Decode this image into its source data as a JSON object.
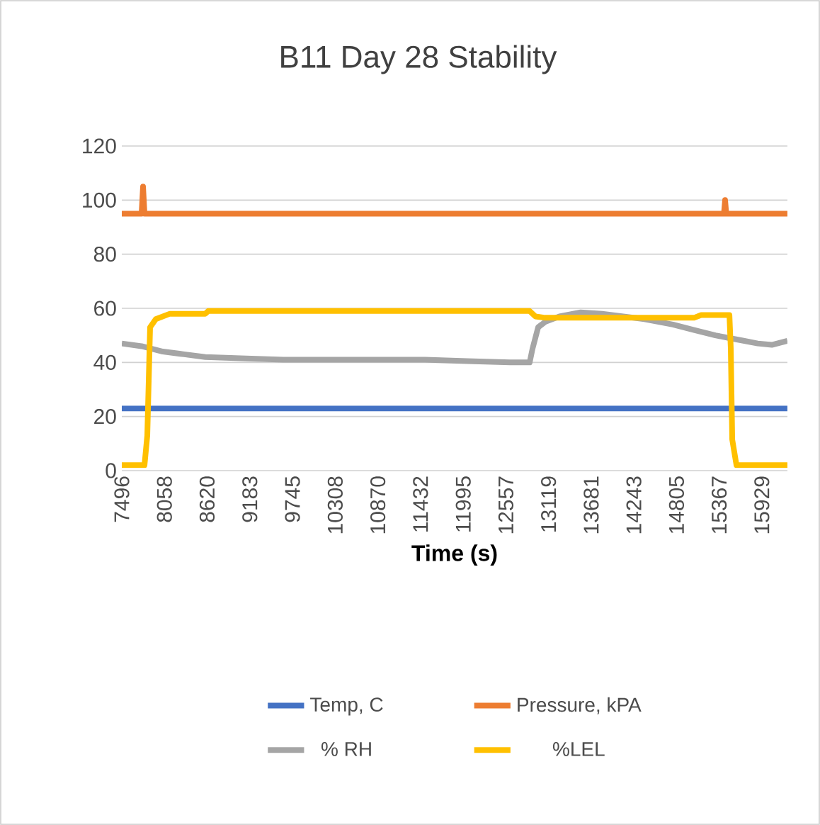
{
  "chart_data": {
    "type": "line",
    "title": "B11 Day 28 Stability",
    "xlabel": "Time (s)",
    "xlim": [
      7496,
      16266
    ],
    "xticks": [
      7496,
      8058,
      8620,
      9183,
      9745,
      10308,
      10870,
      11432,
      11995,
      12557,
      13119,
      13681,
      14243,
      14805,
      15367,
      15929
    ],
    "ylim": [
      0,
      120
    ],
    "yticks": [
      0,
      20,
      40,
      60,
      80,
      100,
      120
    ],
    "grid": "y",
    "legend": "bottom",
    "marker": "none",
    "line_style": "solid",
    "series": [
      {
        "name": "Temp, C",
        "color": "#4472c4",
        "x": [
          7496,
          16266
        ],
        "values": [
          23,
          23
        ]
      },
      {
        "name": "Pressure, kPA",
        "color": "#ed7d31",
        "x": [
          7496,
          7757,
          7776,
          7795,
          15430,
          15445,
          15460,
          16266
        ],
        "values": [
          95,
          95,
          105,
          95,
          95,
          100,
          95,
          95
        ]
      },
      {
        "name": "% RH",
        "color": "#a5a5a5",
        "x": [
          7496,
          7757,
          8037,
          8317,
          8597,
          9063,
          9623,
          10556,
          11490,
          12049,
          12609,
          12870,
          12907,
          12982,
          13075,
          13262,
          13542,
          13823,
          14383,
          14756,
          15036,
          15316,
          15502,
          15688,
          15875,
          16061,
          16266
        ],
        "values": [
          47,
          46,
          44,
          43,
          42,
          41.5,
          41,
          41,
          41,
          40.5,
          40,
          40,
          45,
          53,
          55,
          57,
          58.5,
          58,
          56,
          54,
          52,
          50,
          49,
          48,
          47,
          46.5,
          48
        ]
      },
      {
        "name": "%LEL",
        "color": "#ffc000",
        "x": [
          7496,
          7795,
          7832,
          7869,
          7944,
          8130,
          8597,
          8634,
          12870,
          12945,
          13075,
          15036,
          15129,
          15502,
          15520,
          15539,
          15595,
          16266
        ],
        "values": [
          2,
          2,
          13,
          53,
          56,
          58,
          58,
          59,
          59,
          57,
          56.5,
          56.5,
          57.5,
          57.5,
          45,
          11.5,
          2,
          2
        ]
      }
    ]
  }
}
